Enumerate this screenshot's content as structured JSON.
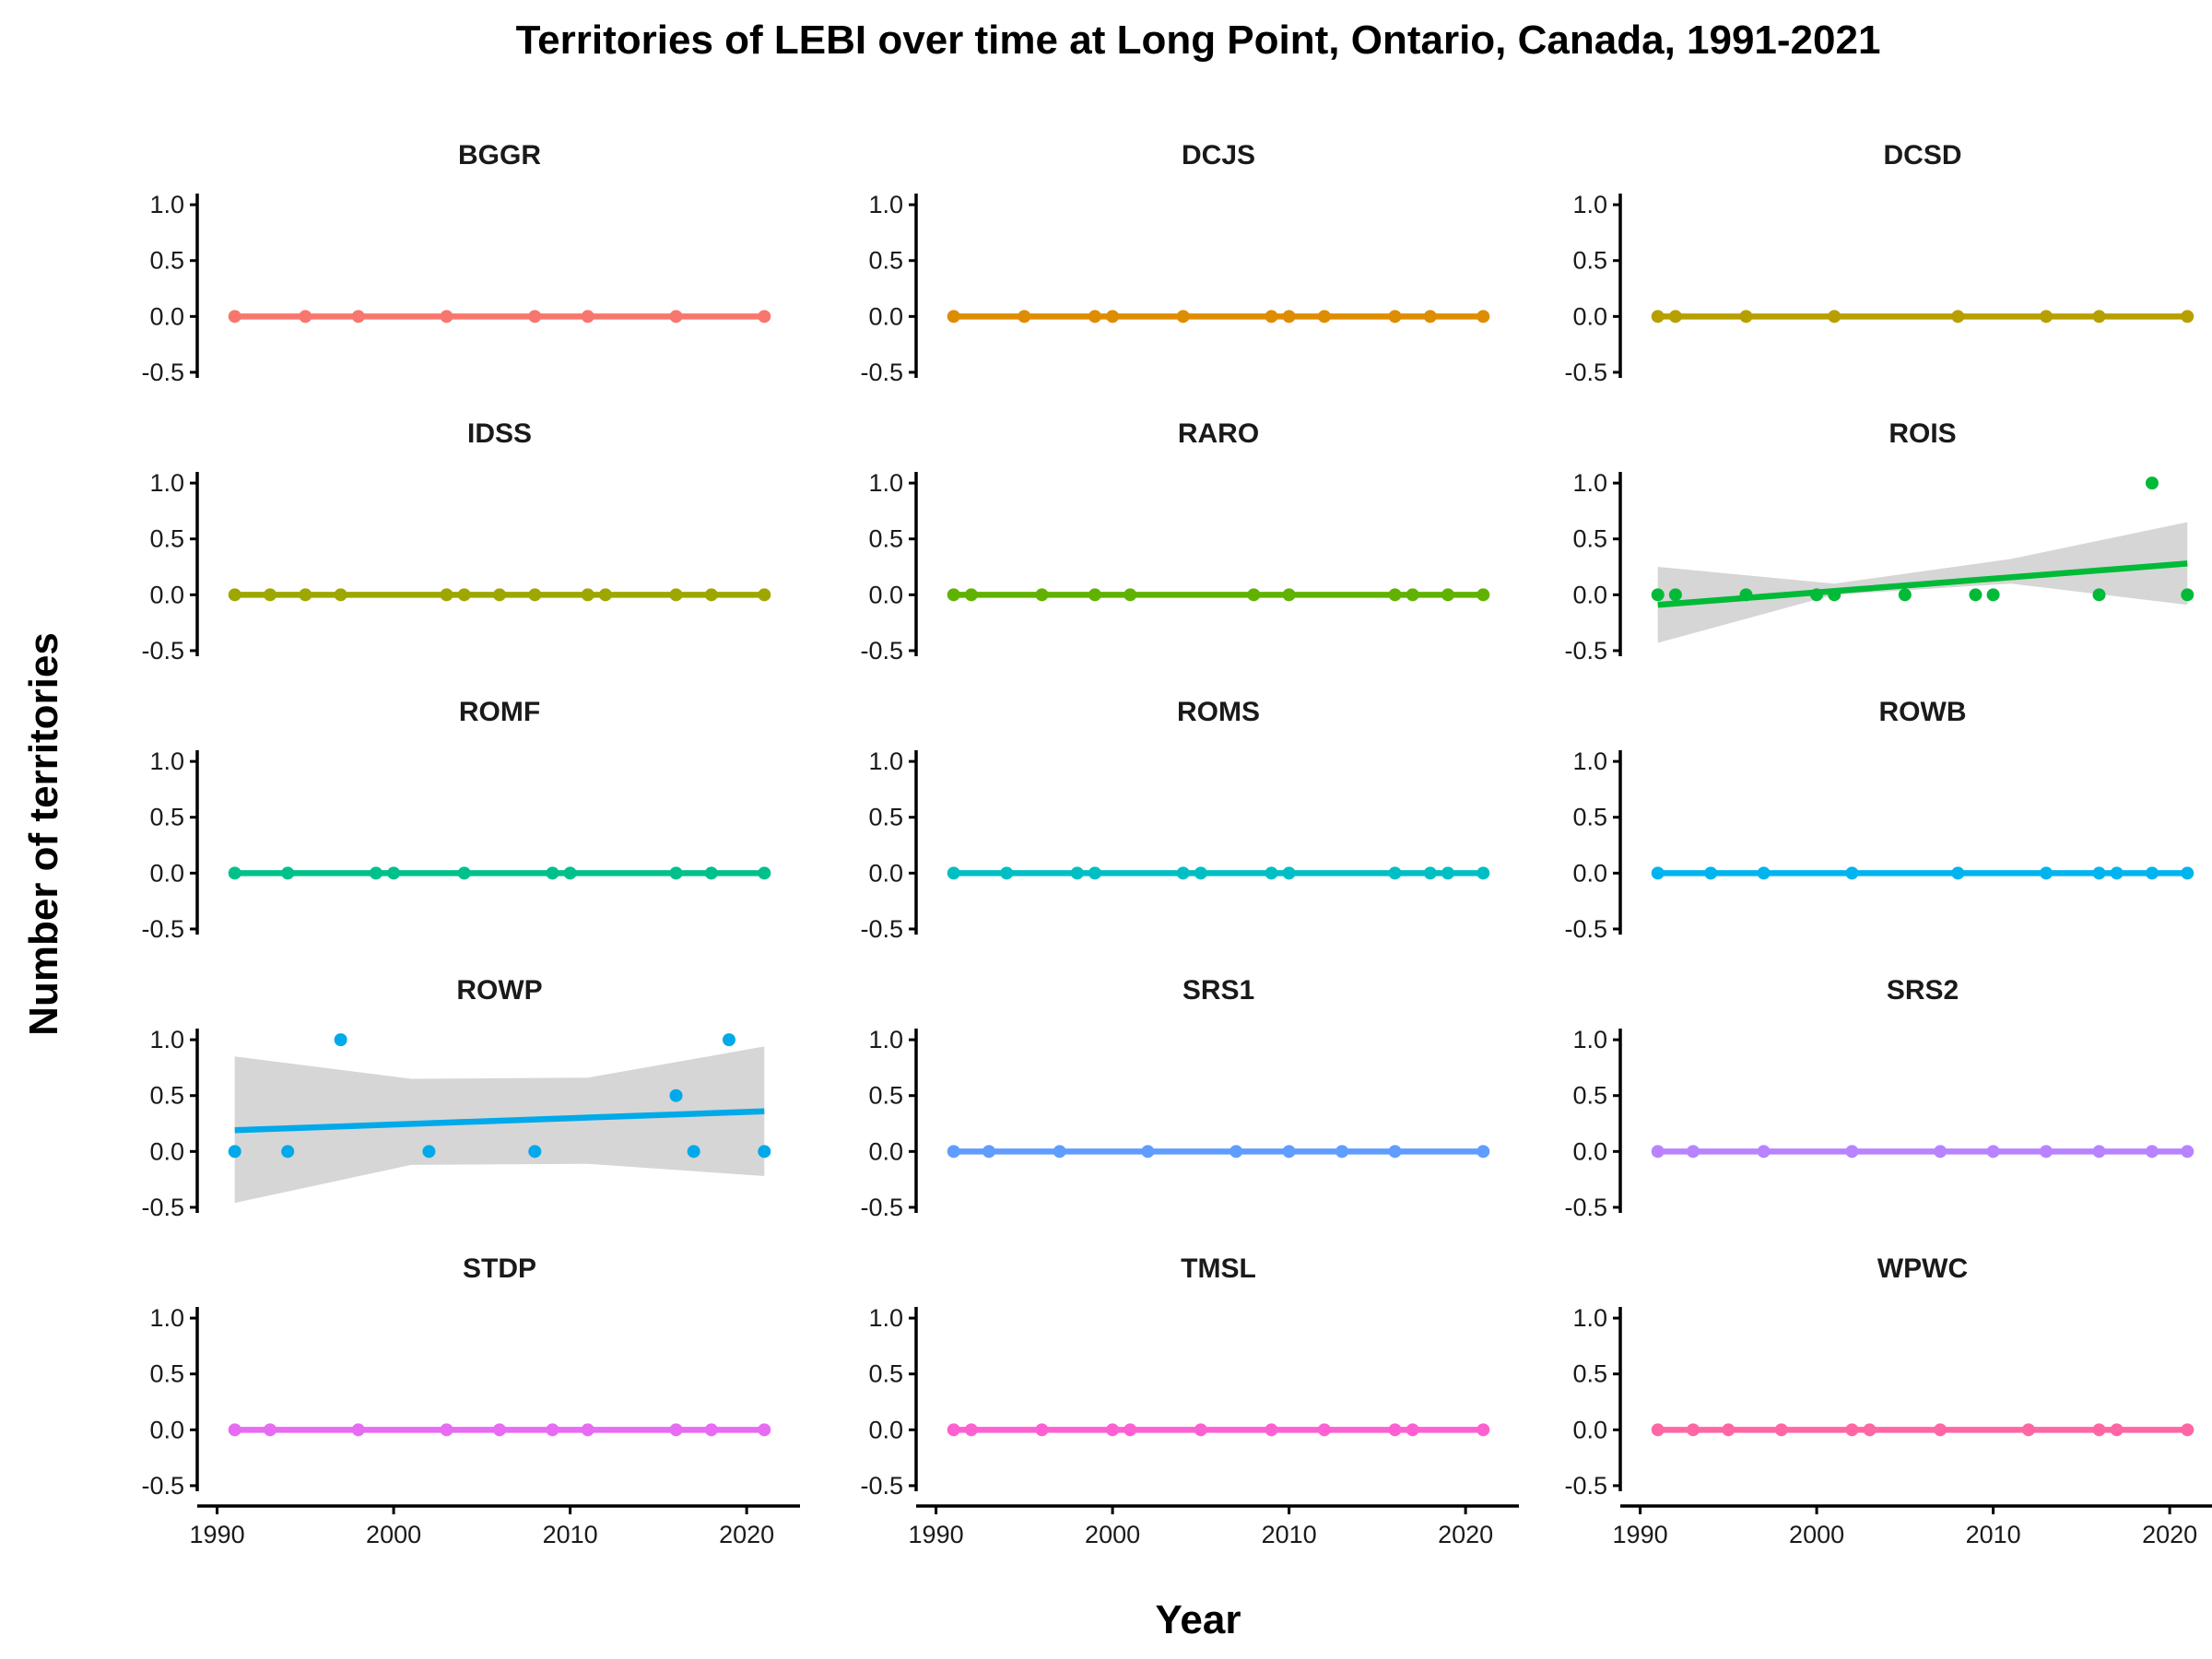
{
  "chart_data": {
    "type": "scatter",
    "title": "Territories of LEBI over time at Long Point, Ontario, Canada, 1991-2021",
    "xlabel": "Year",
    "ylabel": "Number of territories",
    "xlim": [
      1989.5,
      2022.5
    ],
    "ylim": [
      -0.55,
      1.1
    ],
    "x_ticks": [
      1990,
      2000,
      2010,
      2020
    ],
    "y_ticks": [
      -0.5,
      0.0,
      0.5,
      1.0
    ],
    "y_tick_labels": [
      "-0.5",
      "0.0",
      "0.5",
      "1.0"
    ],
    "grid": false,
    "layout": "facet grid 5 rows x 3 columns, fixed scales",
    "fit": "linear trend line with 95% confidence band (grey)",
    "panels": [
      {
        "name": "BGGR",
        "color": "#F8766D",
        "x": [
          1991,
          1995,
          1998,
          2003,
          2008,
          2011,
          2016,
          2021
        ],
        "y": [
          0,
          0,
          0,
          0,
          0,
          0,
          0,
          0
        ],
        "fit": [
          0,
          0
        ],
        "band": null
      },
      {
        "name": "DCJS",
        "color": "#DE8C00",
        "x": [
          1991,
          1995,
          1999,
          2000,
          2004,
          2009,
          2010,
          2012,
          2016,
          2018,
          2021
        ],
        "y": [
          0,
          0,
          0,
          0,
          0,
          0,
          0,
          0,
          0,
          0,
          0
        ],
        "fit": [
          0,
          0
        ],
        "band": null
      },
      {
        "name": "DCSD",
        "color": "#B79F00",
        "x": [
          1991,
          1992,
          1996,
          2001,
          2008,
          2013,
          2016,
          2021
        ],
        "y": [
          0,
          0,
          0,
          0,
          0,
          0,
          0,
          0
        ],
        "fit": [
          0,
          0
        ],
        "band": null
      },
      {
        "name": "IDSS",
        "color": "#9EA700",
        "x": [
          1991,
          1993,
          1995,
          1997,
          2003,
          2004,
          2006,
          2008,
          2011,
          2012,
          2016,
          2018,
          2021
        ],
        "y": [
          0,
          0,
          0,
          0,
          0,
          0,
          0,
          0,
          0,
          0,
          0,
          0,
          0
        ],
        "fit": [
          0,
          0
        ],
        "band": null
      },
      {
        "name": "RARO",
        "color": "#61B200",
        "x": [
          1991,
          1992,
          1996,
          1999,
          2001,
          2008,
          2010,
          2016,
          2017,
          2019,
          2021
        ],
        "y": [
          0,
          0,
          0,
          0,
          0,
          0,
          0,
          0,
          0,
          0,
          0
        ],
        "fit": [
          0,
          0
        ],
        "band": null
      },
      {
        "name": "ROIS",
        "color": "#00BA38",
        "x": [
          1991,
          1992,
          1996,
          2000,
          2001,
          2005,
          2009,
          2010,
          2016,
          2019,
          2021
        ],
        "y": [
          0,
          0,
          0,
          0,
          0,
          0,
          0,
          0,
          0,
          1,
          0
        ],
        "fit": [
          -0.09,
          0.28
        ],
        "band": [
          [
            -0.43,
            0.25
          ],
          [
            0.0,
            0.1
          ],
          [
            0.1,
            0.32
          ],
          [
            -0.09,
            0.65
          ]
        ]
      },
      {
        "name": "ROMF",
        "color": "#00C08B",
        "x": [
          1991,
          1994,
          1999,
          2000,
          2004,
          2009,
          2010,
          2016,
          2018,
          2021
        ],
        "y": [
          0,
          0,
          0,
          0,
          0,
          0,
          0,
          0,
          0,
          0
        ],
        "fit": [
          0,
          0
        ],
        "band": null
      },
      {
        "name": "ROMS",
        "color": "#00BFC4",
        "x": [
          1991,
          1994,
          1998,
          1999,
          2004,
          2005,
          2009,
          2010,
          2016,
          2018,
          2019,
          2021
        ],
        "y": [
          0,
          0,
          0,
          0,
          0,
          0,
          0,
          0,
          0,
          0,
          0,
          0
        ],
        "fit": [
          0,
          0
        ],
        "band": null
      },
      {
        "name": "ROWB",
        "color": "#00B4EF",
        "x": [
          1991,
          1994,
          1997,
          2002,
          2008,
          2013,
          2016,
          2017,
          2019,
          2021
        ],
        "y": [
          0,
          0,
          0,
          0,
          0,
          0,
          0,
          0,
          0,
          0
        ],
        "fit": [
          0,
          0
        ],
        "band": null
      },
      {
        "name": "ROWP",
        "color": "#00A9E9",
        "x": [
          1991,
          1994,
          1997,
          2002,
          2008,
          2016,
          2017,
          2019,
          2021
        ],
        "y": [
          0,
          0,
          1,
          0,
          0,
          0.5,
          0,
          1,
          0
        ],
        "fit": [
          0.19,
          0.36
        ],
        "band": [
          [
            -0.46,
            0.85
          ],
          [
            -0.12,
            0.65
          ],
          [
            -0.11,
            0.66
          ],
          [
            -0.22,
            0.94
          ]
        ]
      },
      {
        "name": "SRS1",
        "color": "#619CFF",
        "x": [
          1991,
          1993,
          1997,
          2002,
          2007,
          2010,
          2013,
          2016,
          2021
        ],
        "y": [
          0,
          0,
          0,
          0,
          0,
          0,
          0,
          0,
          0
        ],
        "fit": [
          0,
          0
        ],
        "band": null
      },
      {
        "name": "SRS2",
        "color": "#B983FF",
        "x": [
          1991,
          1993,
          1997,
          2002,
          2007,
          2010,
          2013,
          2016,
          2019,
          2021
        ],
        "y": [
          0,
          0,
          0,
          0,
          0,
          0,
          0,
          0,
          0,
          0
        ],
        "fit": [
          0,
          0
        ],
        "band": null
      },
      {
        "name": "STDP",
        "color": "#E76BF3",
        "x": [
          1991,
          1993,
          1998,
          2003,
          2006,
          2009,
          2011,
          2016,
          2018,
          2021
        ],
        "y": [
          0,
          0,
          0,
          0,
          0,
          0,
          0,
          0,
          0,
          0
        ],
        "fit": [
          0,
          0
        ],
        "band": null
      },
      {
        "name": "TMSL",
        "color": "#FD61D1",
        "x": [
          1991,
          1992,
          1996,
          2000,
          2001,
          2005,
          2009,
          2012,
          2016,
          2017,
          2021
        ],
        "y": [
          0,
          0,
          0,
          0,
          0,
          0,
          0,
          0,
          0,
          0,
          0
        ],
        "fit": [
          0,
          0
        ],
        "band": null
      },
      {
        "name": "WPWC",
        "color": "#FF67A4",
        "x": [
          1991,
          1993,
          1995,
          1998,
          2002,
          2003,
          2007,
          2012,
          2016,
          2017,
          2021
        ],
        "y": [
          0,
          0,
          0,
          0,
          0,
          0,
          0,
          0,
          0,
          0,
          0
        ],
        "fit": [
          0,
          0
        ],
        "band": null
      }
    ]
  }
}
